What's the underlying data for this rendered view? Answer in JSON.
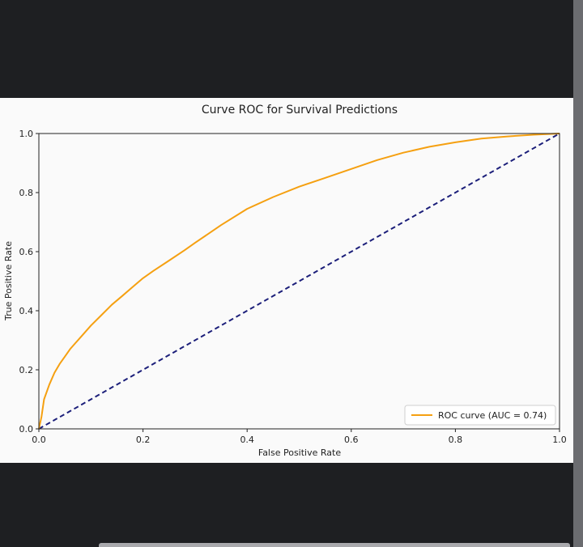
{
  "chart_data": {
    "type": "line",
    "title": "Curve ROC for Survival Predictions",
    "xlabel": "False Positive Rate",
    "ylabel": "True Positive Rate",
    "xlim": [
      0.0,
      1.0
    ],
    "ylim": [
      0.0,
      1.0
    ],
    "xticks": [
      "0.0",
      "0.2",
      "0.4",
      "0.6",
      "0.8",
      "1.0"
    ],
    "yticks": [
      "0.0",
      "0.2",
      "0.4",
      "0.6",
      "0.8",
      "1.0"
    ],
    "grid": false,
    "legend_position": "lower-right",
    "series": [
      {
        "name": "ROC curve (AUC = 0.74)",
        "color": "#f5a011",
        "style": "solid",
        "x": [
          0.0,
          0.005,
          0.01,
          0.02,
          0.03,
          0.04,
          0.05,
          0.06,
          0.07,
          0.08,
          0.1,
          0.12,
          0.14,
          0.16,
          0.18,
          0.2,
          0.22,
          0.25,
          0.28,
          0.3,
          0.35,
          0.4,
          0.45,
          0.5,
          0.55,
          0.6,
          0.65,
          0.7,
          0.75,
          0.8,
          0.85,
          0.9,
          0.95,
          1.0
        ],
        "y": [
          0.0,
          0.04,
          0.1,
          0.15,
          0.19,
          0.22,
          0.245,
          0.27,
          0.29,
          0.31,
          0.35,
          0.385,
          0.42,
          0.45,
          0.48,
          0.51,
          0.535,
          0.57,
          0.605,
          0.63,
          0.69,
          0.745,
          0.785,
          0.82,
          0.85,
          0.88,
          0.91,
          0.935,
          0.955,
          0.97,
          0.983,
          0.99,
          0.996,
          1.0
        ]
      },
      {
        "name": "",
        "color": "#1c1f7a",
        "style": "dashed",
        "x": [
          0.0,
          1.0
        ],
        "y": [
          0.0,
          1.0
        ]
      }
    ]
  }
}
